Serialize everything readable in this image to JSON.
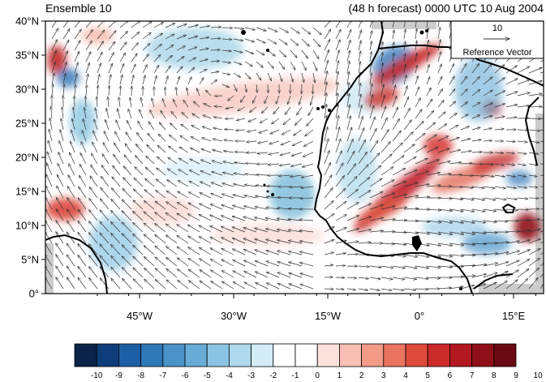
{
  "title_left": "Ensemble 10",
  "title_right": "(48 h forecast) 0000 UTC 10 Aug 2004",
  "y_ticks": [
    "40°N",
    "35°N",
    "30°N",
    "25°N",
    "20°N",
    "15°N",
    "10°N",
    "5°N",
    "0°"
  ],
  "x_ticks": [
    "45°W",
    "30°W",
    "15°W",
    "0°",
    "15°E"
  ],
  "reference_vector": {
    "magnitude": "10",
    "label": "Reference Vector"
  },
  "colorbar": {
    "labels": [
      "-10",
      "-9",
      "-8",
      "-7",
      "-6",
      "-5",
      "-4",
      "-3",
      "-2",
      "-1",
      "0",
      "1",
      "2",
      "3",
      "4",
      "5",
      "6",
      "7",
      "8",
      "9",
      "10"
    ],
    "colors": [
      "#0a2348",
      "#0f3c7a",
      "#1d5fa6",
      "#2f78b8",
      "#4a93c8",
      "#67abd6",
      "#8ac4e2",
      "#aed9ec",
      "#d3ecf6",
      "#ffffff",
      "#ffffff",
      "#fce0dc",
      "#f8c0b4",
      "#f39b87",
      "#ea745f",
      "#de4a3c",
      "#cb2a2a",
      "#b2181f",
      "#8f1019",
      "#6b0a12"
    ]
  },
  "fields": {
    "positive_color": "#d6504a",
    "negative_color": "#4a8cc4",
    "land_outline": "#000000",
    "missing_color": "#cccccc"
  }
}
